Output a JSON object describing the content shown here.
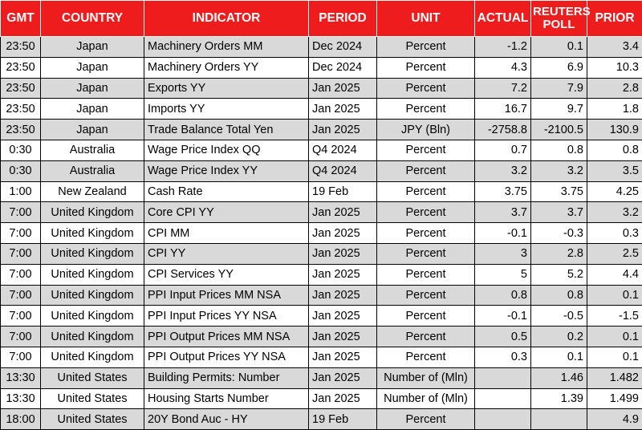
{
  "headers": {
    "gmt": "GMT",
    "country": "COUNTRY",
    "indicator": "INDICATOR",
    "period": "PERIOD",
    "unit": "UNIT",
    "actual": "ACTUAL",
    "reuters_poll": "REUTERS POLL",
    "prior": "PRIOR"
  },
  "rows": [
    {
      "gmt": "23:50",
      "country": "Japan",
      "indicator": "Machinery Orders MM",
      "period": "Dec 2024",
      "unit": "Percent",
      "actual": "-1.2",
      "poll": "0.1",
      "prior": "3.4"
    },
    {
      "gmt": "23:50",
      "country": "Japan",
      "indicator": "Machinery Orders YY",
      "period": "Dec 2024",
      "unit": "Percent",
      "actual": "4.3",
      "poll": "6.9",
      "prior": "10.3"
    },
    {
      "gmt": "23:50",
      "country": "Japan",
      "indicator": "Exports YY",
      "period": "Jan 2025",
      "unit": "Percent",
      "actual": "7.2",
      "poll": "7.9",
      "prior": "2.8"
    },
    {
      "gmt": "23:50",
      "country": "Japan",
      "indicator": "Imports YY",
      "period": "Jan 2025",
      "unit": "Percent",
      "actual": "16.7",
      "poll": "9.7",
      "prior": "1.8"
    },
    {
      "gmt": "23:50",
      "country": "Japan",
      "indicator": "Trade Balance Total Yen",
      "period": "Jan 2025",
      "unit": "JPY (Bln)",
      "actual": "-2758.8",
      "poll": "-2100.5",
      "prior": "130.9"
    },
    {
      "gmt": "0:30",
      "country": "Australia",
      "indicator": "Wage Price Index QQ",
      "period": "Q4 2024",
      "unit": "Percent",
      "actual": "0.7",
      "poll": "0.8",
      "prior": "0.8"
    },
    {
      "gmt": "0:30",
      "country": "Australia",
      "indicator": "Wage Price Index YY",
      "period": "Q4 2024",
      "unit": "Percent",
      "actual": "3.2",
      "poll": "3.2",
      "prior": "3.5"
    },
    {
      "gmt": "1:00",
      "country": "New Zealand",
      "indicator": "Cash Rate",
      "period": "19 Feb",
      "unit": "Percent",
      "actual": "3.75",
      "poll": "3.75",
      "prior": "4.25"
    },
    {
      "gmt": "7:00",
      "country": "United Kingdom",
      "indicator": "Core CPI YY",
      "period": "Jan 2025",
      "unit": "Percent",
      "actual": "3.7",
      "poll": "3.7",
      "prior": "3.2"
    },
    {
      "gmt": "7:00",
      "country": "United Kingdom",
      "indicator": "CPI MM",
      "period": "Jan 2025",
      "unit": "Percent",
      "actual": "-0.1",
      "poll": "-0.3",
      "prior": "0.3"
    },
    {
      "gmt": "7:00",
      "country": "United Kingdom",
      "indicator": "CPI YY",
      "period": "Jan 2025",
      "unit": "Percent",
      "actual": "3",
      "poll": "2.8",
      "prior": "2.5"
    },
    {
      "gmt": "7:00",
      "country": "United Kingdom",
      "indicator": "CPI Services YY",
      "period": "Jan 2025",
      "unit": "Percent",
      "actual": "5",
      "poll": "5.2",
      "prior": "4.4"
    },
    {
      "gmt": "7:00",
      "country": "United Kingdom",
      "indicator": "PPI Input Prices MM NSA",
      "period": "Jan 2025",
      "unit": "Percent",
      "actual": "0.8",
      "poll": "0.8",
      "prior": "0.1"
    },
    {
      "gmt": "7:00",
      "country": "United Kingdom",
      "indicator": "PPI Input Prices YY NSA",
      "period": "Jan 2025",
      "unit": "Percent",
      "actual": "-0.1",
      "poll": "-0.5",
      "prior": "-1.5"
    },
    {
      "gmt": "7:00",
      "country": "United Kingdom",
      "indicator": "PPI Output Prices MM NSA",
      "period": "Jan 2025",
      "unit": "Percent",
      "actual": "0.5",
      "poll": "0.2",
      "prior": "0.1"
    },
    {
      "gmt": "7:00",
      "country": "United Kingdom",
      "indicator": "PPI Output Prices YY NSA",
      "period": "Jan 2025",
      "unit": "Percent",
      "actual": "0.3",
      "poll": "0.1",
      "prior": "0.1"
    },
    {
      "gmt": "13:30",
      "country": "United States",
      "indicator": "Building Permits: Number",
      "period": "Jan 2025",
      "unit": "Number of (Mln)",
      "actual": "",
      "poll": "1.46",
      "prior": "1.482"
    },
    {
      "gmt": "13:30",
      "country": "United States",
      "indicator": "Housing Starts Number",
      "period": "Jan 2025",
      "unit": "Number of (Mln)",
      "actual": "",
      "poll": "1.39",
      "prior": "1.499"
    },
    {
      "gmt": "18:00",
      "country": "United States",
      "indicator": "20Y Bond Auc - HY",
      "period": "19 Feb",
      "unit": "Percent",
      "actual": "",
      "poll": "",
      "prior": "4.9"
    }
  ],
  "colors": {
    "header_bg": "#ee1c1c",
    "header_text": "#ffffff",
    "row_shaded": "#d9d9d9",
    "row_plain": "#ffffff"
  }
}
